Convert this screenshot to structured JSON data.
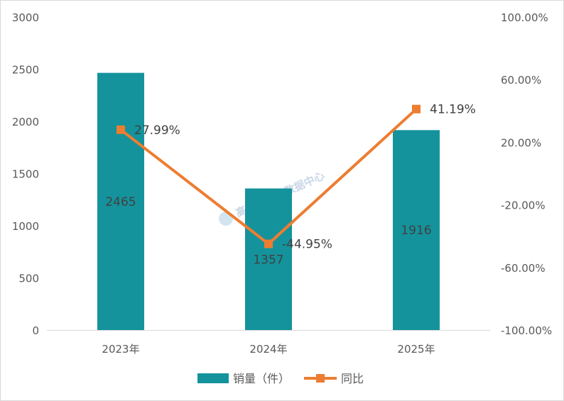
{
  "chart_data": {
    "type": "bar",
    "categories": [
      "2023年",
      "2024年",
      "2025年"
    ],
    "series": [
      {
        "name": "销量（件）",
        "type": "bar",
        "axis": "left",
        "values": [
          2465,
          1357,
          1916
        ],
        "labels": [
          "2465",
          "1357",
          "1916"
        ],
        "color": "#14939c"
      },
      {
        "name": "同比",
        "type": "line",
        "axis": "right",
        "values": [
          27.99,
          -44.95,
          41.19
        ],
        "labels": [
          "27.99%",
          "-44.95%",
          "41.19%"
        ],
        "color": "#ed7d31"
      }
    ],
    "y_left": {
      "range": [
        0,
        3000
      ],
      "ticks": [
        0,
        500,
        1000,
        1500,
        2000,
        2500,
        3000
      ],
      "tick_labels": [
        "0",
        "500",
        "1000",
        "1500",
        "2000",
        "2500",
        "3000"
      ]
    },
    "y_right": {
      "range": [
        -100,
        100
      ],
      "ticks": [
        -100,
        -60,
        -20,
        20,
        60,
        100
      ],
      "tick_labels": [
        "-100.00%",
        "-60.00%",
        "-20.00%",
        "20.00%",
        "60.00%",
        "100.00%"
      ]
    },
    "grid": false,
    "legend_position": "bottom",
    "watermark": "高端医械院数据中心"
  }
}
